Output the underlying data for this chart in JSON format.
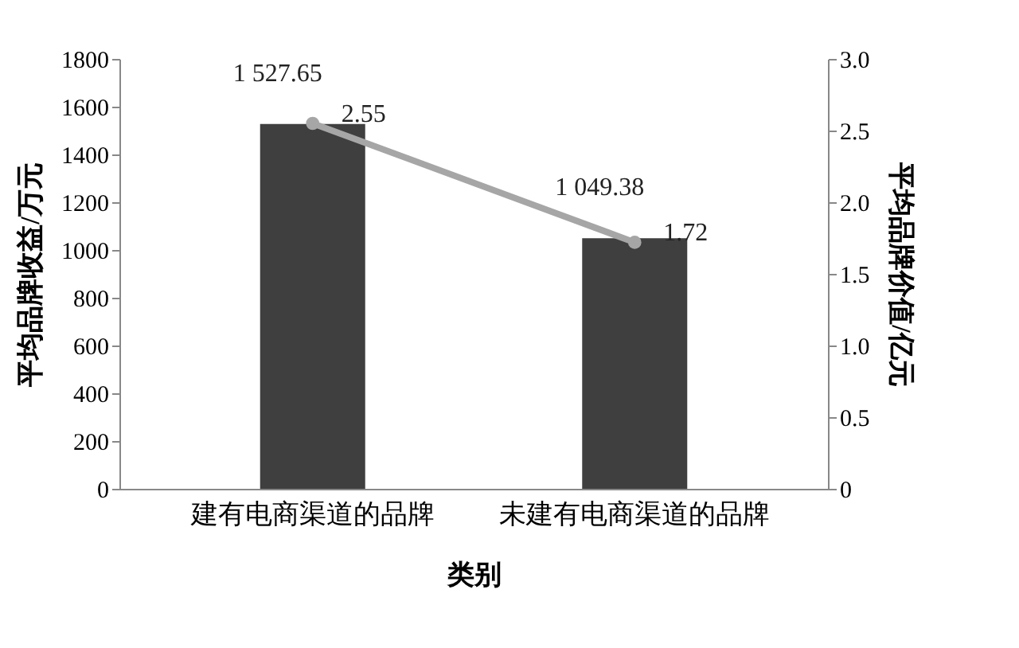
{
  "chart_data": {
    "type": "bar",
    "xlabel": "类别",
    "ylabel": "平均品牌收益/万元",
    "y2label": "平均品牌价值/亿元",
    "categories": [
      "建有电商渠道的品牌",
      "未建有电商渠道的品牌"
    ],
    "series": [
      {
        "color": "#3f3f3f",
        "values": [
          1527.65,
          1049.38
        ],
        "value_labels": [
          "1 527.65",
          "1 049.38"
        ]
      },
      {
        "type": "line",
        "axis": "y2",
        "color": "#a6a6a6",
        "marker": "circle",
        "values": [
          2.55,
          1.72
        ],
        "value_labels": [
          "2.55",
          "1.72"
        ]
      }
    ],
    "ylim": [
      0,
      1800
    ],
    "yticks": [
      0,
      200,
      400,
      600,
      800,
      1000,
      1200,
      1400,
      1600,
      1800
    ],
    "y2lim": [
      0,
      3
    ],
    "y2ticks": [
      0,
      0.5,
      {
        "value": 1,
        "label": "1.0"
      },
      1.5,
      {
        "value": 2,
        "label": "2.0"
      },
      2.5,
      {
        "value": 3,
        "label": "3.0"
      }
    ],
    "grid": false
  }
}
